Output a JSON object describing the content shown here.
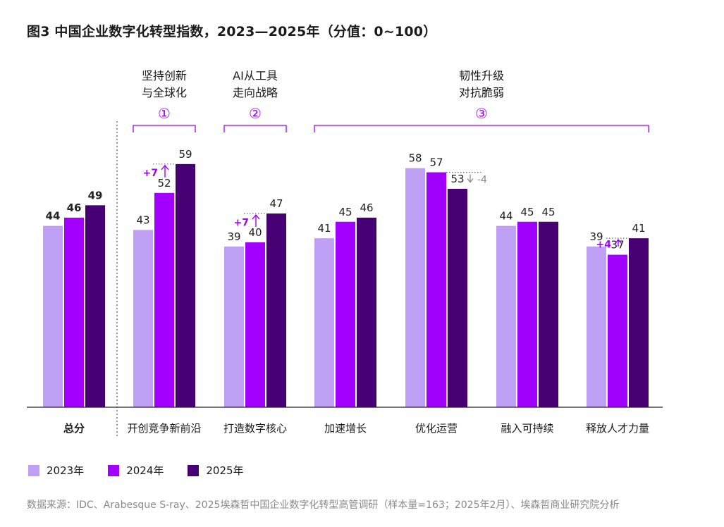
{
  "title": "图3  中国企业数字化转型指数，2023—2025年（分值：0~100）",
  "chart_data": {
    "type": "bar",
    "title": "中国企业数字化转型指数，2023—2025年（分值：0~100）",
    "categories": [
      "总分",
      "开创竞争新前沿",
      "打造数字核心",
      "加速增长",
      "优化运营",
      "融入可持续",
      "释放人才力量"
    ],
    "series": [
      {
        "name": "2023年",
        "color": "#c0a0f5",
        "values": [
          44,
          43,
          39,
          41,
          58,
          44,
          39
        ]
      },
      {
        "name": "2024年",
        "color": "#a100ff",
        "values": [
          46,
          52,
          40,
          45,
          57,
          45,
          37
        ]
      },
      {
        "name": "2025年",
        "color": "#460073",
        "values": [
          49,
          59,
          47,
          46,
          53,
          45,
          41
        ]
      }
    ],
    "ylim": [
      0,
      100
    ],
    "grid": false,
    "legend_position": "bottom-left",
    "groups": [
      {
        "number": "①",
        "line1": "坚持创新",
        "line2": "与全球化",
        "from": 1,
        "to": 1
      },
      {
        "number": "②",
        "line1": "AI从工具",
        "line2": "走向战略",
        "from": 2,
        "to": 2
      },
      {
        "number": "③",
        "line1": "韧性升级",
        "line2": "对抗脆弱",
        "from": 3,
        "to": 6
      }
    ],
    "annotations": [
      {
        "category": 1,
        "from_series": 1,
        "to_series": 2,
        "text": "+7",
        "color": "#a100ff"
      },
      {
        "category": 2,
        "from_series": 1,
        "to_series": 2,
        "text": "+7",
        "color": "#a100ff"
      },
      {
        "category": 4,
        "from_series": 1,
        "to_series": 2,
        "text": "-4",
        "color": "#8c8c8c"
      },
      {
        "category": 6,
        "from_series": 1,
        "to_series": 2,
        "text": "+4",
        "color": "#a100ff"
      }
    ]
  },
  "source": "数据来源：IDC、Arabesque S-ray、2025埃森哲中国企业数字化转型高管调研（样本量=163；2025年2月）、埃森哲商业研究院分析"
}
